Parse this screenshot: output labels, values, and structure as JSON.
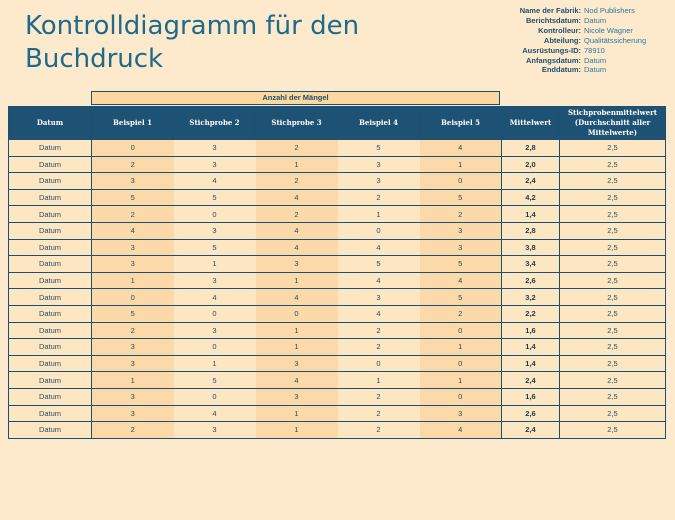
{
  "title": "Kontrolldiagramm für den Buchdruck",
  "meta": [
    {
      "label": "Name der Fabrik:",
      "value": "Nod Publishers"
    },
    {
      "label": "Berichtsdatum:",
      "value": "Datum"
    },
    {
      "label": "Kontrolleur:",
      "value": "Nicole Wagner"
    },
    {
      "label": "Abteilung:",
      "value": "Qualitätssicherung"
    },
    {
      "label": "Ausrüstungs-ID:",
      "value": "78910"
    },
    {
      "label": "Anfangsdatum:",
      "value": "Datum"
    },
    {
      "label": "Enddatum:",
      "value": "Datum"
    }
  ],
  "table": {
    "group_label": "Anzahl der Mängel",
    "columns": [
      "Datum",
      "Beispiel 1",
      "Stichprobe 2",
      "Stichprobe 3",
      "Beispiel 4",
      "Beispiel 5",
      "Mittelwert",
      "Stichprobenmittelwert (Durchschnitt aller Mittelwerte)"
    ],
    "rows": [
      [
        "Datum",
        "0",
        "3",
        "2",
        "5",
        "4",
        "2,8",
        "2,5"
      ],
      [
        "Datum",
        "2",
        "3",
        "1",
        "3",
        "1",
        "2,0",
        "2,5"
      ],
      [
        "Datum",
        "3",
        "4",
        "2",
        "3",
        "0",
        "2,4",
        "2,5"
      ],
      [
        "Datum",
        "5",
        "5",
        "4",
        "2",
        "5",
        "4,2",
        "2,5"
      ],
      [
        "Datum",
        "2",
        "0",
        "2",
        "1",
        "2",
        "1,4",
        "2,5"
      ],
      [
        "Datum",
        "4",
        "3",
        "4",
        "0",
        "3",
        "2,8",
        "2,5"
      ],
      [
        "Datum",
        "3",
        "5",
        "4",
        "4",
        "3",
        "3,8",
        "2,5"
      ],
      [
        "Datum",
        "3",
        "1",
        "3",
        "5",
        "5",
        "3,4",
        "2,5"
      ],
      [
        "Datum",
        "1",
        "3",
        "1",
        "4",
        "4",
        "2,6",
        "2,5"
      ],
      [
        "Datum",
        "0",
        "4",
        "4",
        "3",
        "5",
        "3,2",
        "2,5"
      ],
      [
        "Datum",
        "5",
        "0",
        "0",
        "4",
        "2",
        "2,2",
        "2,5"
      ],
      [
        "Datum",
        "2",
        "3",
        "1",
        "2",
        "0",
        "1,6",
        "2,5"
      ],
      [
        "Datum",
        "3",
        "0",
        "1",
        "2",
        "1",
        "1,4",
        "2,5"
      ],
      [
        "Datum",
        "3",
        "1",
        "3",
        "0",
        "0",
        "1,4",
        "2,5"
      ],
      [
        "Datum",
        "1",
        "5",
        "4",
        "1",
        "1",
        "2,4",
        "2,5"
      ],
      [
        "Datum",
        "3",
        "0",
        "3",
        "2",
        "0",
        "1,6",
        "2,5"
      ],
      [
        "Datum",
        "3",
        "4",
        "1",
        "2",
        "3",
        "2,6",
        "2,5"
      ],
      [
        "Datum",
        "2",
        "3",
        "1",
        "2",
        "4",
        "2,4",
        "2,5"
      ]
    ]
  }
}
